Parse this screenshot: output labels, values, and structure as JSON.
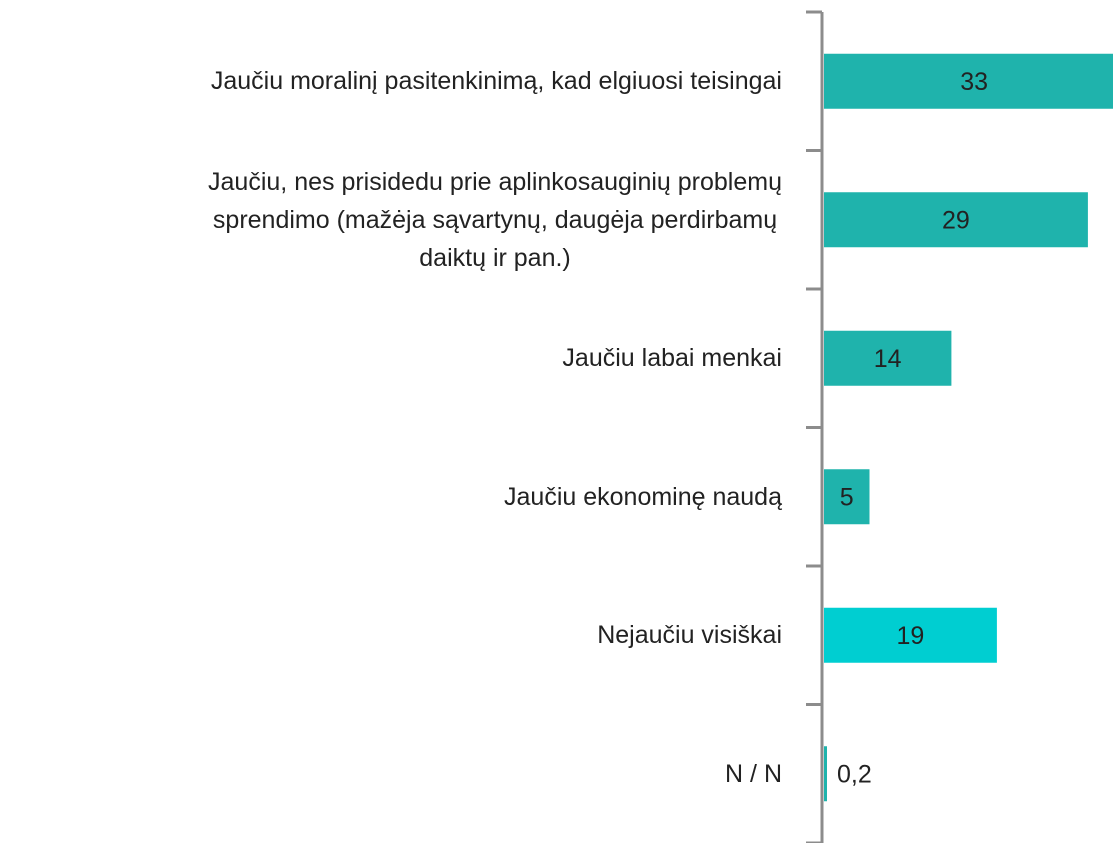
{
  "chart_data": {
    "type": "barh",
    "categories": [
      "Jaučiu moralinį pasitenkinimą,  kad elgiuosi teisingai",
      "Jaučiu, nes prisidedu prie aplinkosauginių problemų\nsprendimo (mažėja sąvartynų, daugėja  perdirbamų\ndaiktų ir pan.)",
      "Jaučiu labai menkai",
      "Jaučiu ekonominę naudą",
      "Nejaučiu visiškai",
      "N / N"
    ],
    "values": [
      33,
      29,
      14,
      5,
      19,
      0.2
    ],
    "value_labels": [
      "33",
      "29",
      "14",
      "5",
      "19",
      "0,2"
    ],
    "colors": [
      "#1fb3ac",
      "#1fb3ac",
      "#1fb3ac",
      "#1fb3ac",
      "#00ced1",
      "#1fb3ac"
    ]
  }
}
